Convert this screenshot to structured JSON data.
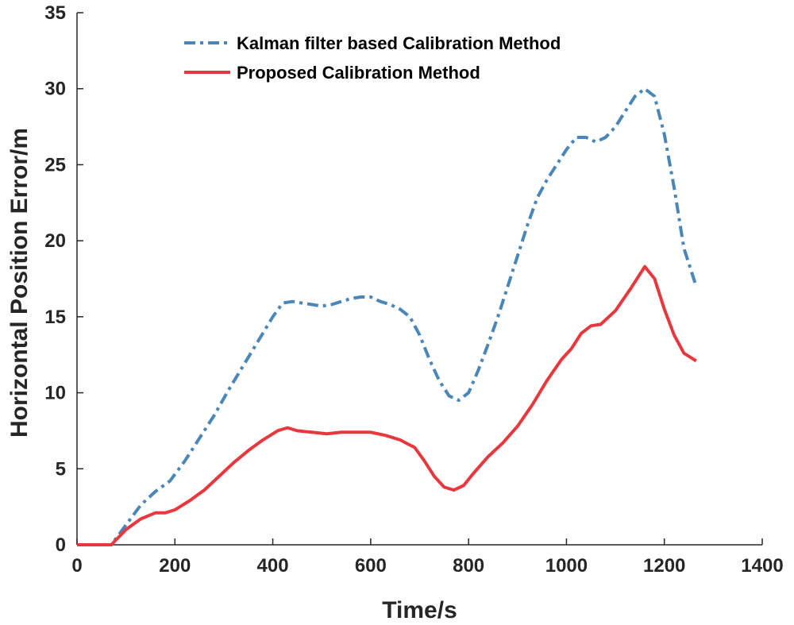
{
  "chart_data": {
    "type": "line",
    "title": "",
    "xlabel": "Time/s",
    "ylabel": "Horizontal Position Error/m",
    "xlim": [
      0,
      1400
    ],
    "ylim": [
      0,
      35
    ],
    "xticks": [
      "0",
      "200",
      "400",
      "600",
      "800",
      "1000",
      "1200",
      "1400"
    ],
    "yticks": [
      "0",
      "5",
      "10",
      "15",
      "20",
      "25",
      "30",
      "35"
    ],
    "grid": false,
    "legend_position": "top-center",
    "series": [
      {
        "name": "Kalman filter based Calibration Method",
        "color": "#4a86b8",
        "style": "dashdot",
        "x": [
          0,
          70,
          100,
          130,
          160,
          190,
          220,
          250,
          280,
          310,
          340,
          370,
          400,
          420,
          440,
          460,
          480,
          500,
          520,
          540,
          560,
          580,
          600,
          620,
          640,
          660,
          680,
          700,
          720,
          740,
          760,
          780,
          800,
          820,
          840,
          860,
          880,
          900,
          920,
          940,
          960,
          980,
          1000,
          1020,
          1040,
          1060,
          1080,
          1100,
          1120,
          1140,
          1160,
          1180,
          1200,
          1220,
          1240,
          1265
        ],
        "y": [
          0,
          0,
          1.3,
          2.6,
          3.5,
          4.2,
          5.5,
          7.0,
          8.5,
          10.2,
          11.8,
          13.4,
          15.0,
          15.9,
          16.0,
          15.9,
          15.8,
          15.7,
          15.8,
          16.0,
          16.2,
          16.3,
          16.3,
          16.0,
          15.8,
          15.5,
          15.0,
          13.8,
          12.2,
          10.8,
          9.8,
          9.5,
          10.0,
          11.5,
          13.2,
          15.0,
          17.0,
          19.0,
          21.0,
          22.8,
          24.0,
          25.0,
          26.0,
          26.8,
          26.8,
          26.5,
          26.8,
          27.5,
          28.5,
          29.5,
          30.0,
          29.5,
          27.0,
          23.5,
          19.5,
          17.0
        ]
      },
      {
        "name": "Proposed Calibration Method",
        "color": "#e8383d",
        "style": "solid",
        "x": [
          0,
          70,
          100,
          130,
          160,
          180,
          200,
          230,
          260,
          290,
          320,
          350,
          380,
          410,
          430,
          450,
          480,
          510,
          540,
          570,
          600,
          630,
          660,
          690,
          710,
          730,
          750,
          770,
          790,
          810,
          840,
          870,
          900,
          930,
          960,
          990,
          1010,
          1030,
          1050,
          1070,
          1100,
          1130,
          1160,
          1180,
          1200,
          1220,
          1240,
          1265
        ],
        "y": [
          0,
          0,
          1.0,
          1.7,
          2.1,
          2.1,
          2.3,
          2.9,
          3.6,
          4.5,
          5.4,
          6.2,
          6.9,
          7.5,
          7.7,
          7.5,
          7.4,
          7.3,
          7.4,
          7.4,
          7.4,
          7.2,
          6.9,
          6.4,
          5.5,
          4.5,
          3.8,
          3.6,
          3.9,
          4.7,
          5.8,
          6.7,
          7.8,
          9.2,
          10.8,
          12.2,
          12.9,
          13.9,
          14.4,
          14.5,
          15.4,
          16.8,
          18.3,
          17.5,
          15.5,
          13.8,
          12.6,
          12.1
        ]
      }
    ]
  }
}
